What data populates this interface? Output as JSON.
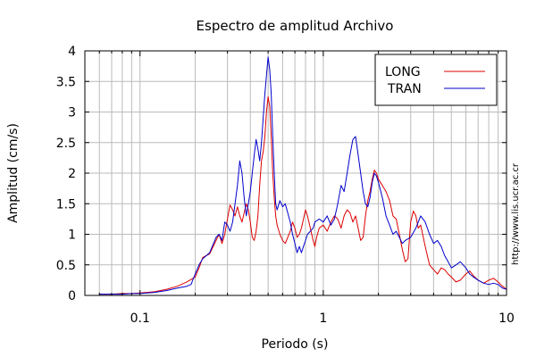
{
  "chart_data": {
    "type": "line",
    "title": "Espectro de amplitud Archivo",
    "xlabel": "Periodo (s)",
    "ylabel": "Amplitud (cm/s)",
    "xscale": "log",
    "xlim": [
      0.05,
      10
    ],
    "ylim": [
      0,
      4
    ],
    "grid": true,
    "legend_position": "top-right",
    "x_ticks": [
      {
        "value": 0.1,
        "label": "0.1"
      },
      {
        "value": 1,
        "label": "1"
      },
      {
        "value": 10,
        "label": "10"
      }
    ],
    "y_ticks": [
      {
        "value": 0,
        "label": "0"
      },
      {
        "value": 0.5,
        "label": "0.5"
      },
      {
        "value": 1,
        "label": "1"
      },
      {
        "value": 1.5,
        "label": "1.5"
      },
      {
        "value": 2,
        "label": "2"
      },
      {
        "value": 2.5,
        "label": "2.5"
      },
      {
        "value": 3,
        "label": "3"
      },
      {
        "value": 3.5,
        "label": "3.5"
      },
      {
        "value": 4,
        "label": "4"
      }
    ],
    "series": [
      {
        "name": "LONG",
        "color": "#dd0000",
        "points": [
          [
            0.06,
            0.02
          ],
          [
            0.07,
            0.02
          ],
          [
            0.08,
            0.03
          ],
          [
            0.09,
            0.03
          ],
          [
            0.1,
            0.04
          ],
          [
            0.12,
            0.06
          ],
          [
            0.14,
            0.1
          ],
          [
            0.16,
            0.15
          ],
          [
            0.18,
            0.22
          ],
          [
            0.2,
            0.3
          ],
          [
            0.21,
            0.45
          ],
          [
            0.22,
            0.62
          ],
          [
            0.24,
            0.68
          ],
          [
            0.26,
            0.9
          ],
          [
            0.27,
            1.0
          ],
          [
            0.28,
            0.85
          ],
          [
            0.29,
            1.0
          ],
          [
            0.3,
            1.25
          ],
          [
            0.31,
            1.48
          ],
          [
            0.32,
            1.4
          ],
          [
            0.33,
            1.3
          ],
          [
            0.34,
            1.45
          ],
          [
            0.35,
            1.3
          ],
          [
            0.36,
            1.2
          ],
          [
            0.37,
            1.35
          ],
          [
            0.38,
            1.5
          ],
          [
            0.39,
            1.4
          ],
          [
            0.4,
            1.2
          ],
          [
            0.41,
            0.95
          ],
          [
            0.42,
            0.9
          ],
          [
            0.43,
            1.05
          ],
          [
            0.44,
            1.3
          ],
          [
            0.45,
            1.8
          ],
          [
            0.46,
            2.2
          ],
          [
            0.47,
            2.35
          ],
          [
            0.48,
            2.6
          ],
          [
            0.49,
            3.0
          ],
          [
            0.5,
            3.25
          ],
          [
            0.51,
            3.1
          ],
          [
            0.52,
            2.6
          ],
          [
            0.53,
            2.0
          ],
          [
            0.54,
            1.6
          ],
          [
            0.55,
            1.3
          ],
          [
            0.56,
            1.15
          ],
          [
            0.58,
            1.0
          ],
          [
            0.6,
            0.9
          ],
          [
            0.62,
            0.85
          ],
          [
            0.64,
            0.95
          ],
          [
            0.66,
            1.05
          ],
          [
            0.68,
            1.2
          ],
          [
            0.7,
            1.1
          ],
          [
            0.72,
            0.95
          ],
          [
            0.74,
            1.0
          ],
          [
            0.76,
            1.1
          ],
          [
            0.78,
            1.25
          ],
          [
            0.8,
            1.4
          ],
          [
            0.82,
            1.3
          ],
          [
            0.85,
            1.1
          ],
          [
            0.88,
            0.9
          ],
          [
            0.9,
            0.8
          ],
          [
            0.92,
            0.95
          ],
          [
            0.95,
            1.1
          ],
          [
            1.0,
            1.15
          ],
          [
            1.05,
            1.05
          ],
          [
            1.1,
            1.2
          ],
          [
            1.15,
            1.3
          ],
          [
            1.2,
            1.25
          ],
          [
            1.25,
            1.1
          ],
          [
            1.3,
            1.3
          ],
          [
            1.35,
            1.4
          ],
          [
            1.4,
            1.35
          ],
          [
            1.45,
            1.2
          ],
          [
            1.5,
            1.3
          ],
          [
            1.55,
            1.1
          ],
          [
            1.6,
            0.9
          ],
          [
            1.65,
            0.95
          ],
          [
            1.7,
            1.3
          ],
          [
            1.75,
            1.55
          ],
          [
            1.8,
            1.7
          ],
          [
            1.85,
            1.9
          ],
          [
            1.9,
            2.05
          ],
          [
            1.95,
            2.0
          ],
          [
            2.0,
            1.9
          ],
          [
            2.1,
            1.8
          ],
          [
            2.2,
            1.7
          ],
          [
            2.3,
            1.55
          ],
          [
            2.4,
            1.3
          ],
          [
            2.5,
            1.25
          ],
          [
            2.6,
            1.0
          ],
          [
            2.7,
            0.75
          ],
          [
            2.8,
            0.55
          ],
          [
            2.9,
            0.6
          ],
          [
            3.0,
            1.2
          ],
          [
            3.1,
            1.38
          ],
          [
            3.2,
            1.3
          ],
          [
            3.3,
            1.1
          ],
          [
            3.4,
            1.15
          ],
          [
            3.6,
            0.8
          ],
          [
            3.8,
            0.5
          ],
          [
            4.0,
            0.42
          ],
          [
            4.2,
            0.35
          ],
          [
            4.4,
            0.45
          ],
          [
            4.6,
            0.42
          ],
          [
            4.8,
            0.35
          ],
          [
            5.0,
            0.3
          ],
          [
            5.3,
            0.22
          ],
          [
            5.6,
            0.25
          ],
          [
            6.0,
            0.35
          ],
          [
            6.3,
            0.4
          ],
          [
            6.6,
            0.32
          ],
          [
            7.0,
            0.25
          ],
          [
            7.5,
            0.2
          ],
          [
            8.0,
            0.25
          ],
          [
            8.5,
            0.28
          ],
          [
            9.0,
            0.22
          ],
          [
            9.5,
            0.15
          ],
          [
            10,
            0.1
          ]
        ]
      },
      {
        "name": "TRAN",
        "color": "#0000cc",
        "points": [
          [
            0.06,
            0.02
          ],
          [
            0.07,
            0.02
          ],
          [
            0.08,
            0.02
          ],
          [
            0.09,
            0.03
          ],
          [
            0.1,
            0.03
          ],
          [
            0.12,
            0.05
          ],
          [
            0.14,
            0.08
          ],
          [
            0.16,
            0.12
          ],
          [
            0.18,
            0.15
          ],
          [
            0.19,
            0.18
          ],
          [
            0.2,
            0.35
          ],
          [
            0.21,
            0.5
          ],
          [
            0.22,
            0.6
          ],
          [
            0.24,
            0.7
          ],
          [
            0.26,
            0.95
          ],
          [
            0.27,
            1.0
          ],
          [
            0.28,
            0.9
          ],
          [
            0.29,
            1.2
          ],
          [
            0.3,
            1.15
          ],
          [
            0.31,
            1.05
          ],
          [
            0.32,
            1.2
          ],
          [
            0.33,
            1.5
          ],
          [
            0.34,
            1.8
          ],
          [
            0.35,
            2.2
          ],
          [
            0.36,
            2.0
          ],
          [
            0.37,
            1.6
          ],
          [
            0.38,
            1.3
          ],
          [
            0.39,
            1.5
          ],
          [
            0.4,
            1.7
          ],
          [
            0.41,
            2.0
          ],
          [
            0.42,
            2.3
          ],
          [
            0.43,
            2.55
          ],
          [
            0.44,
            2.4
          ],
          [
            0.45,
            2.2
          ],
          [
            0.46,
            2.5
          ],
          [
            0.47,
            2.9
          ],
          [
            0.48,
            3.3
          ],
          [
            0.49,
            3.6
          ],
          [
            0.5,
            3.9
          ],
          [
            0.51,
            3.7
          ],
          [
            0.52,
            3.3
          ],
          [
            0.53,
            2.6
          ],
          [
            0.54,
            2.0
          ],
          [
            0.55,
            1.5
          ],
          [
            0.56,
            1.4
          ],
          [
            0.58,
            1.55
          ],
          [
            0.6,
            1.45
          ],
          [
            0.62,
            1.5
          ],
          [
            0.64,
            1.35
          ],
          [
            0.66,
            1.2
          ],
          [
            0.68,
            1.0
          ],
          [
            0.7,
            0.85
          ],
          [
            0.72,
            0.7
          ],
          [
            0.74,
            0.8
          ],
          [
            0.76,
            0.7
          ],
          [
            0.78,
            0.8
          ],
          [
            0.8,
            0.9
          ],
          [
            0.82,
            1.0
          ],
          [
            0.85,
            1.05
          ],
          [
            0.88,
            1.1
          ],
          [
            0.9,
            1.2
          ],
          [
            0.95,
            1.25
          ],
          [
            1.0,
            1.2
          ],
          [
            1.05,
            1.3
          ],
          [
            1.1,
            1.15
          ],
          [
            1.15,
            1.25
          ],
          [
            1.2,
            1.5
          ],
          [
            1.25,
            1.8
          ],
          [
            1.3,
            1.7
          ],
          [
            1.35,
            2.0
          ],
          [
            1.4,
            2.3
          ],
          [
            1.45,
            2.55
          ],
          [
            1.5,
            2.6
          ],
          [
            1.55,
            2.3
          ],
          [
            1.6,
            2.0
          ],
          [
            1.65,
            1.7
          ],
          [
            1.7,
            1.5
          ],
          [
            1.75,
            1.45
          ],
          [
            1.8,
            1.6
          ],
          [
            1.85,
            1.85
          ],
          [
            1.9,
            2.0
          ],
          [
            1.95,
            1.95
          ],
          [
            2.0,
            1.85
          ],
          [
            2.1,
            1.6
          ],
          [
            2.2,
            1.3
          ],
          [
            2.3,
            1.15
          ],
          [
            2.4,
            1.0
          ],
          [
            2.5,
            1.05
          ],
          [
            2.6,
            0.95
          ],
          [
            2.7,
            0.85
          ],
          [
            2.8,
            0.9
          ],
          [
            3.0,
            0.95
          ],
          [
            3.2,
            1.1
          ],
          [
            3.4,
            1.3
          ],
          [
            3.6,
            1.2
          ],
          [
            3.8,
            1.0
          ],
          [
            4.0,
            0.85
          ],
          [
            4.2,
            0.9
          ],
          [
            4.4,
            0.8
          ],
          [
            4.6,
            0.65
          ],
          [
            4.8,
            0.55
          ],
          [
            5.0,
            0.45
          ],
          [
            5.3,
            0.5
          ],
          [
            5.6,
            0.55
          ],
          [
            6.0,
            0.45
          ],
          [
            6.3,
            0.35
          ],
          [
            6.6,
            0.3
          ],
          [
            7.0,
            0.25
          ],
          [
            7.5,
            0.2
          ],
          [
            8.0,
            0.18
          ],
          [
            8.5,
            0.2
          ],
          [
            9.0,
            0.18
          ],
          [
            9.5,
            0.12
          ],
          [
            10,
            0.1
          ]
        ]
      }
    ],
    "side_text": "http://www.lis.ucr.ac.cr"
  }
}
